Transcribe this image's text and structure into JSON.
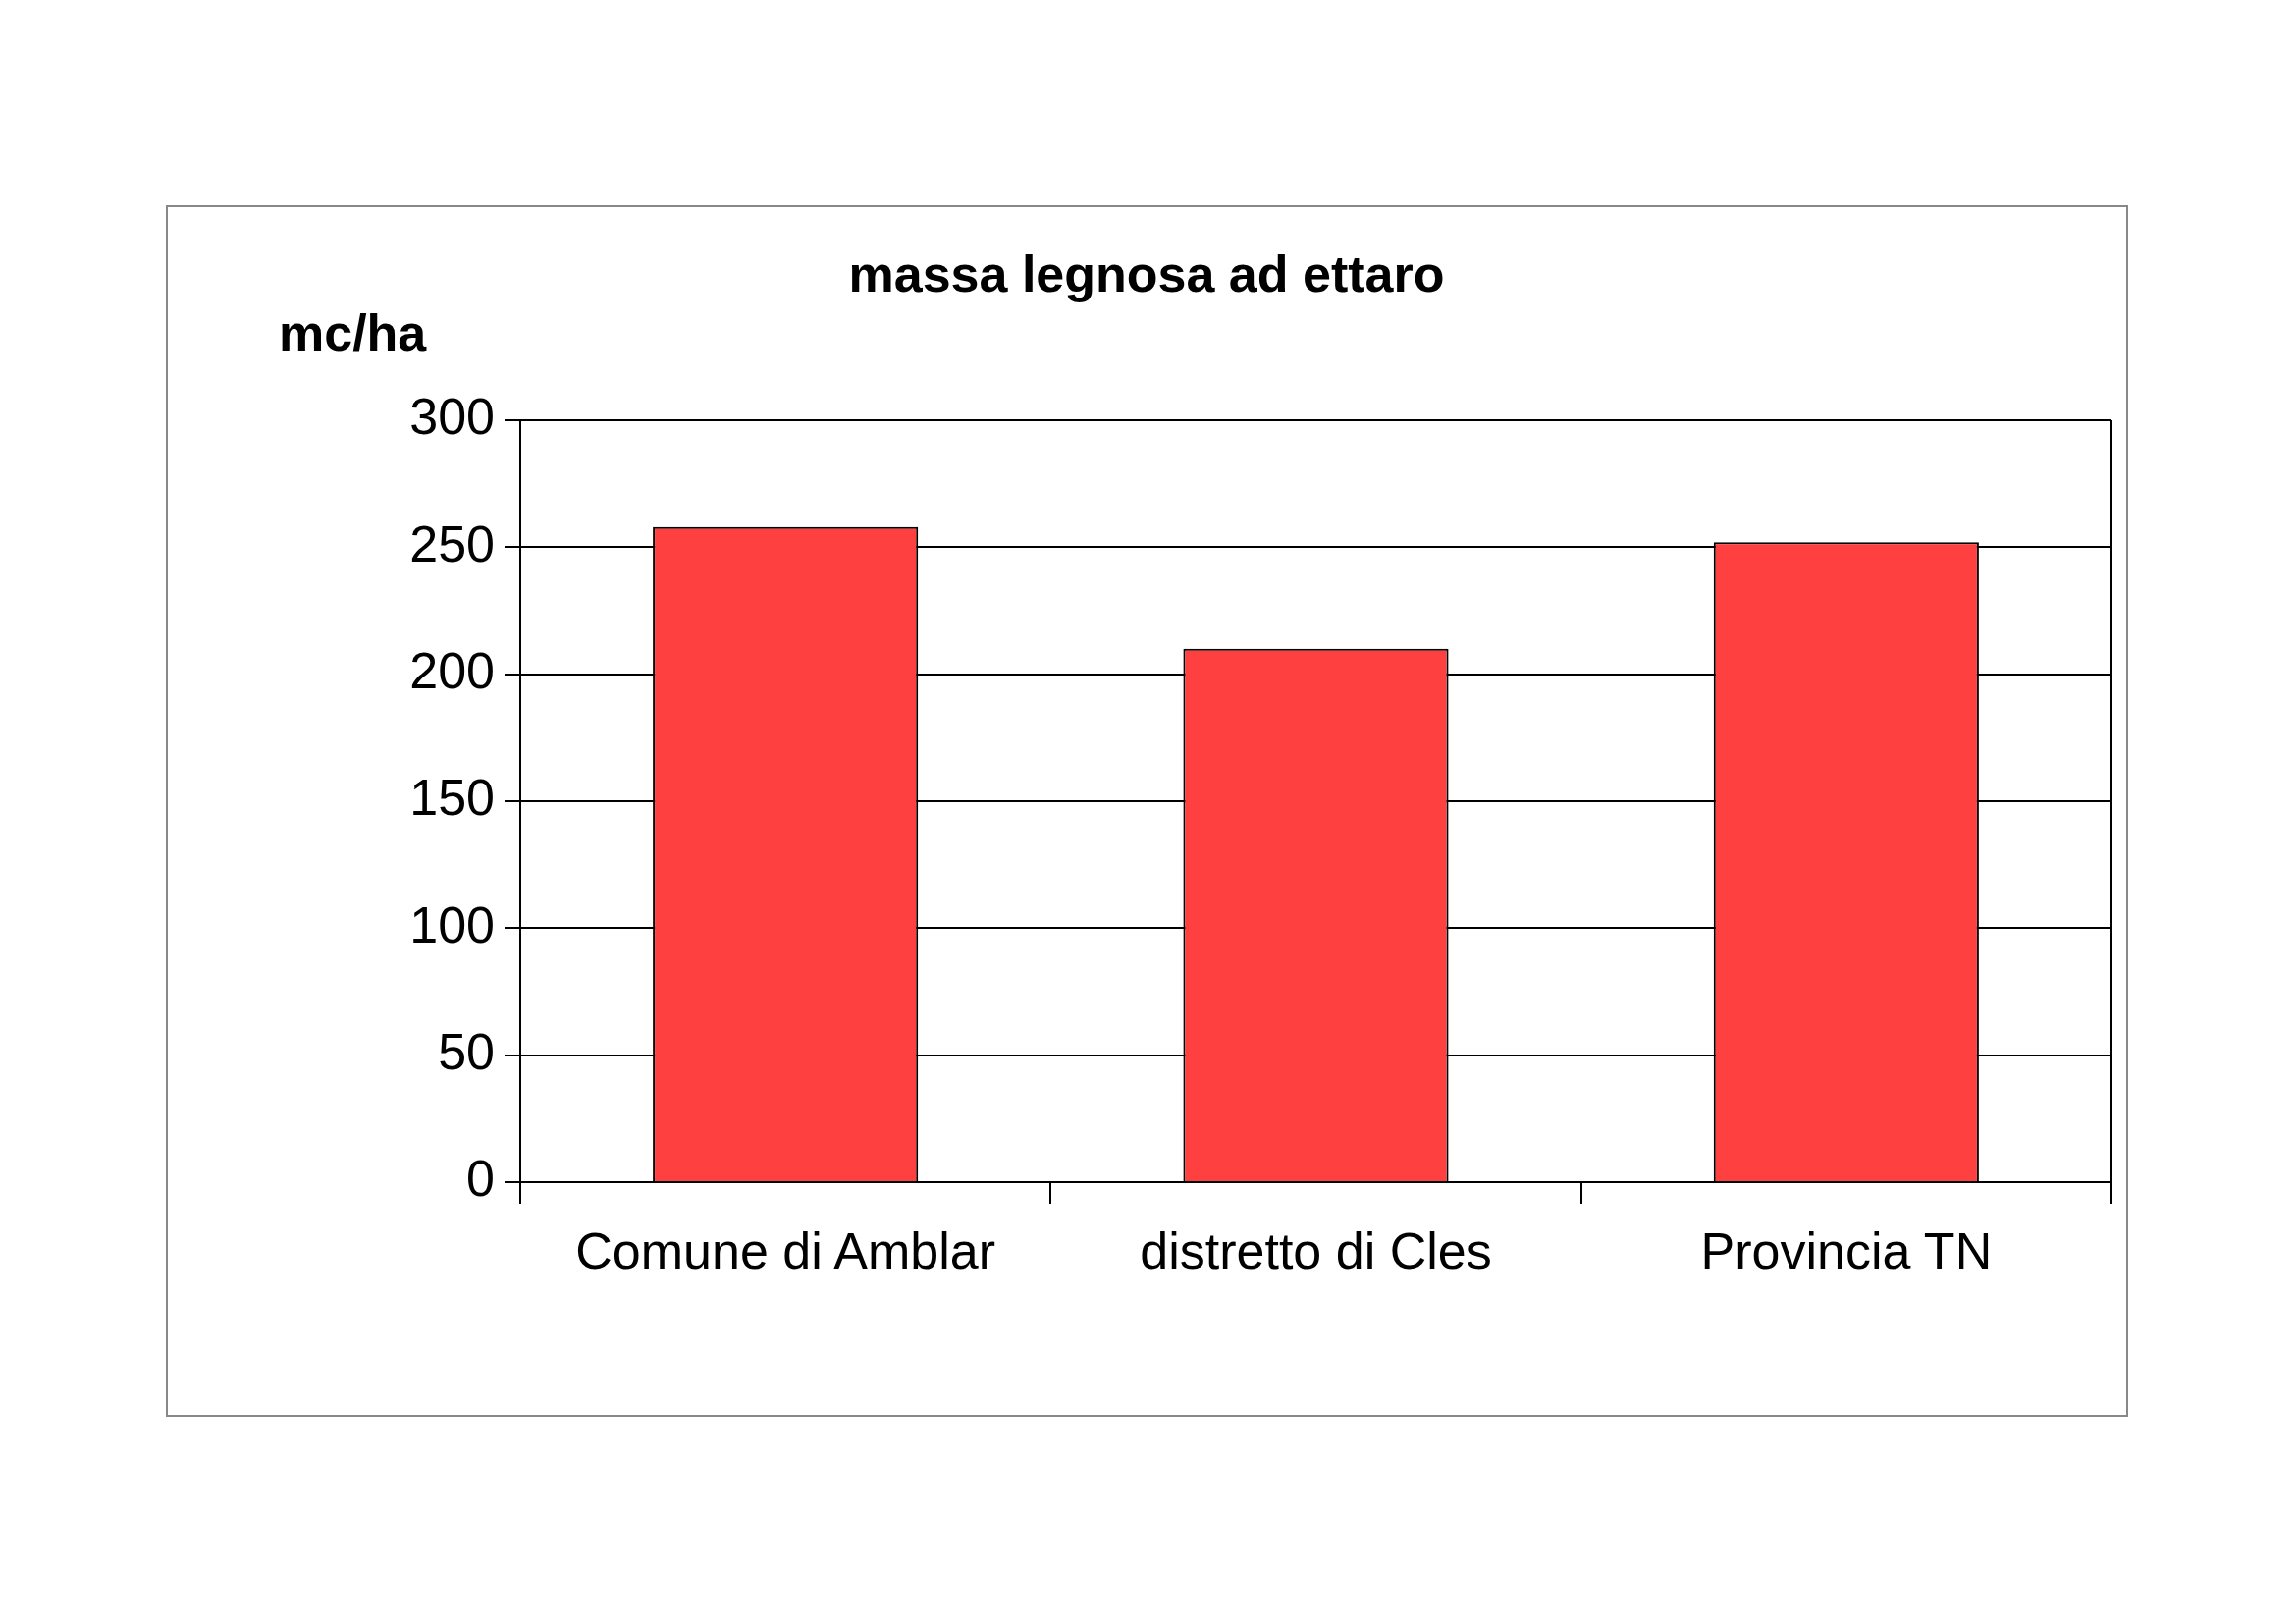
{
  "chart_data": {
    "type": "bar",
    "title": "massa legnosa ad ettaro",
    "ylabel": "mc/ha",
    "categories": [
      "Comune di Amblar",
      "distretto di Cles",
      "Provincia TN"
    ],
    "values": [
      258,
      210,
      252
    ],
    "color": "#ff4040",
    "ylim": [
      0,
      300
    ],
    "yticks": [
      0,
      50,
      100,
      150,
      200,
      250,
      300
    ],
    "grid": "y",
    "legend": false
  }
}
